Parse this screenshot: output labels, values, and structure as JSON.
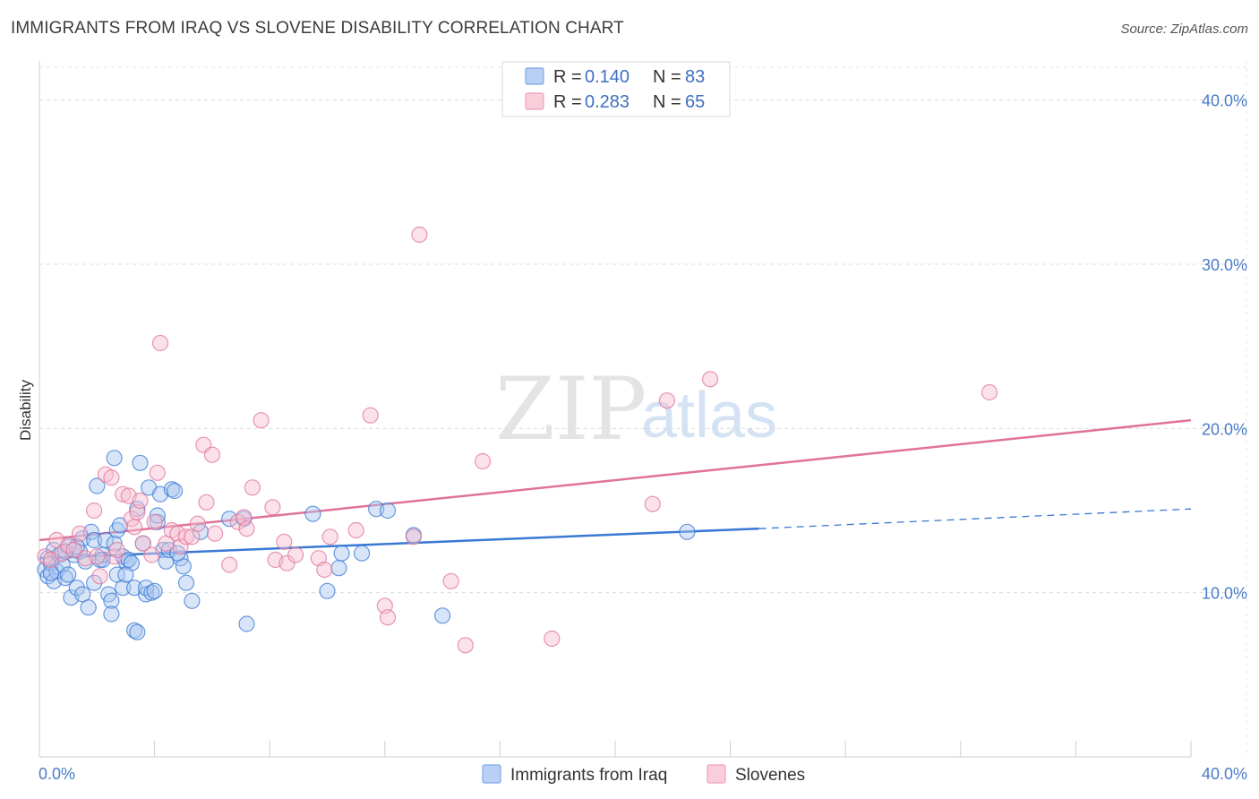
{
  "header": {
    "title": "IMMIGRANTS FROM IRAQ VS SLOVENE DISABILITY CORRELATION CHART",
    "source": "Source: ZipAtlas.com"
  },
  "watermark": {
    "zip": "ZIP",
    "atlas": "atlas"
  },
  "legend": {
    "rows": [
      {
        "r_label": "R = ",
        "r_value": "0.140",
        "n_label": "N = ",
        "n_value": "83",
        "color": "#7fa8e8"
      },
      {
        "r_label": "R = ",
        "r_value": "0.283",
        "n_label": "N = ",
        "n_value": "65",
        "color": "#f0a0bb"
      }
    ]
  },
  "bottom_legend": {
    "items": [
      {
        "label": "Immigrants from Iraq",
        "color": "#7fa8e8"
      },
      {
        "label": "Slovenes",
        "color": "#f0a0bb"
      }
    ]
  },
  "chart_data": {
    "type": "scatter",
    "title": "IMMIGRANTS FROM IRAQ VS SLOVENE DISABILITY CORRELATION CHART",
    "xlabel": "",
    "ylabel": "Disability",
    "xlim": [
      0,
      40
    ],
    "ylim": [
      0,
      42
    ],
    "x_tick_labels": [
      "0.0%",
      "40.0%"
    ],
    "y_ticks": [
      10,
      20,
      30,
      40
    ],
    "y_tick_labels": [
      "10.0%",
      "20.0%",
      "30.0%",
      "40.0%"
    ],
    "grid": true,
    "series": [
      {
        "name": "Immigrants from Iraq",
        "color": "#3a78d4",
        "fill": "#a9c6f0",
        "trend": {
          "x0": 0,
          "y0": 12.1,
          "x1": 25,
          "y1": 13.9,
          "dash_to_x": 40,
          "dash_to_y": 15.1
        },
        "points": [
          [
            0.2,
            11.4
          ],
          [
            0.3,
            12.1
          ],
          [
            0.3,
            11.0
          ],
          [
            0.4,
            11.8
          ],
          [
            0.5,
            10.7
          ],
          [
            0.5,
            12.6
          ],
          [
            0.6,
            11.3
          ],
          [
            0.7,
            12.3
          ],
          [
            0.8,
            11.7
          ],
          [
            0.9,
            10.9
          ],
          [
            1.0,
            12.8
          ],
          [
            1.0,
            11.1
          ],
          [
            1.1,
            9.7
          ],
          [
            1.2,
            12.3
          ],
          [
            1.3,
            10.3
          ],
          [
            1.4,
            12.5
          ],
          [
            1.5,
            13.3
          ],
          [
            1.5,
            9.9
          ],
          [
            1.6,
            11.9
          ],
          [
            1.7,
            9.1
          ],
          [
            1.8,
            13.7
          ],
          [
            1.9,
            13.2
          ],
          [
            1.9,
            10.6
          ],
          [
            2.0,
            16.5
          ],
          [
            2.1,
            12.0
          ],
          [
            2.2,
            12.3
          ],
          [
            2.3,
            13.2
          ],
          [
            2.4,
            9.9
          ],
          [
            2.5,
            9.5
          ],
          [
            2.5,
            8.7
          ],
          [
            2.6,
            18.2
          ],
          [
            2.6,
            13.0
          ],
          [
            2.7,
            11.1
          ],
          [
            2.7,
            13.8
          ],
          [
            2.8,
            14.1
          ],
          [
            2.9,
            12.2
          ],
          [
            2.9,
            10.3
          ],
          [
            3.0,
            11.9
          ],
          [
            3.1,
            12.0
          ],
          [
            3.2,
            11.8
          ],
          [
            3.3,
            10.3
          ],
          [
            3.3,
            7.7
          ],
          [
            3.4,
            15.1
          ],
          [
            3.4,
            7.6
          ],
          [
            3.5,
            17.9
          ],
          [
            3.6,
            13.0
          ],
          [
            3.7,
            9.9
          ],
          [
            3.7,
            10.3
          ],
          [
            3.8,
            16.4
          ],
          [
            3.9,
            10.0
          ],
          [
            4.0,
            10.1
          ],
          [
            4.1,
            14.3
          ],
          [
            4.1,
            14.7
          ],
          [
            4.2,
            16.0
          ],
          [
            4.3,
            12.6
          ],
          [
            4.4,
            11.9
          ],
          [
            4.5,
            12.6
          ],
          [
            4.6,
            16.3
          ],
          [
            4.7,
            16.2
          ],
          [
            4.9,
            12.1
          ],
          [
            5.0,
            11.6
          ],
          [
            5.1,
            10.6
          ],
          [
            5.3,
            9.5
          ],
          [
            5.6,
            13.7
          ],
          [
            6.6,
            14.5
          ],
          [
            7.1,
            14.5
          ],
          [
            7.2,
            8.1
          ],
          [
            9.5,
            14.8
          ],
          [
            10.0,
            10.1
          ],
          [
            10.4,
            11.5
          ],
          [
            10.5,
            12.4
          ],
          [
            11.2,
            12.4
          ],
          [
            11.7,
            15.1
          ],
          [
            12.1,
            15.0
          ],
          [
            13.0,
            13.5
          ],
          [
            14.0,
            8.6
          ],
          [
            22.5,
            13.7
          ],
          [
            0.4,
            11.2
          ],
          [
            0.9,
            12.5
          ],
          [
            1.3,
            12.8
          ],
          [
            2.2,
            12.0
          ],
          [
            3.0,
            11.1
          ],
          [
            4.8,
            12.4
          ]
        ]
      },
      {
        "name": "Slovenes",
        "color": "#e07399",
        "fill": "#f6bfd0",
        "trend": {
          "x0": 0,
          "y0": 13.2,
          "x1": 40,
          "y1": 20.5
        },
        "points": [
          [
            0.2,
            12.2
          ],
          [
            0.4,
            12.0
          ],
          [
            0.6,
            13.2
          ],
          [
            0.8,
            12.4
          ],
          [
            1.0,
            12.9
          ],
          [
            1.2,
            12.6
          ],
          [
            1.4,
            13.6
          ],
          [
            1.6,
            12.1
          ],
          [
            1.9,
            15.0
          ],
          [
            2.0,
            12.2
          ],
          [
            2.1,
            11.0
          ],
          [
            2.3,
            17.2
          ],
          [
            2.5,
            17.0
          ],
          [
            2.6,
            12.2
          ],
          [
            2.7,
            12.6
          ],
          [
            2.9,
            16.0
          ],
          [
            3.1,
            15.9
          ],
          [
            3.2,
            14.5
          ],
          [
            3.3,
            14.0
          ],
          [
            3.4,
            14.9
          ],
          [
            3.5,
            15.6
          ],
          [
            3.6,
            13.0
          ],
          [
            3.9,
            12.3
          ],
          [
            4.0,
            14.3
          ],
          [
            4.1,
            17.3
          ],
          [
            4.2,
            25.2
          ],
          [
            4.4,
            13.0
          ],
          [
            4.6,
            13.8
          ],
          [
            4.8,
            13.6
          ],
          [
            4.9,
            12.8
          ],
          [
            5.1,
            13.4
          ],
          [
            5.3,
            13.4
          ],
          [
            5.5,
            14.2
          ],
          [
            5.7,
            19.0
          ],
          [
            5.8,
            15.5
          ],
          [
            6.0,
            18.4
          ],
          [
            6.1,
            13.6
          ],
          [
            6.6,
            11.7
          ],
          [
            6.9,
            14.3
          ],
          [
            7.1,
            14.6
          ],
          [
            7.2,
            13.9
          ],
          [
            7.4,
            16.4
          ],
          [
            7.7,
            20.5
          ],
          [
            8.1,
            15.2
          ],
          [
            8.2,
            12.0
          ],
          [
            8.5,
            13.1
          ],
          [
            8.6,
            11.8
          ],
          [
            8.9,
            12.3
          ],
          [
            9.7,
            12.1
          ],
          [
            9.9,
            11.4
          ],
          [
            10.1,
            13.4
          ],
          [
            11.0,
            13.8
          ],
          [
            11.5,
            20.8
          ],
          [
            12.0,
            9.2
          ],
          [
            12.1,
            8.5
          ],
          [
            13.0,
            13.4
          ],
          [
            13.2,
            31.8
          ],
          [
            14.3,
            10.7
          ],
          [
            14.8,
            6.8
          ],
          [
            15.4,
            18.0
          ],
          [
            17.8,
            7.2
          ],
          [
            21.3,
            15.4
          ],
          [
            21.8,
            21.7
          ],
          [
            23.3,
            23.0
          ],
          [
            33.0,
            22.2
          ]
        ]
      }
    ]
  }
}
